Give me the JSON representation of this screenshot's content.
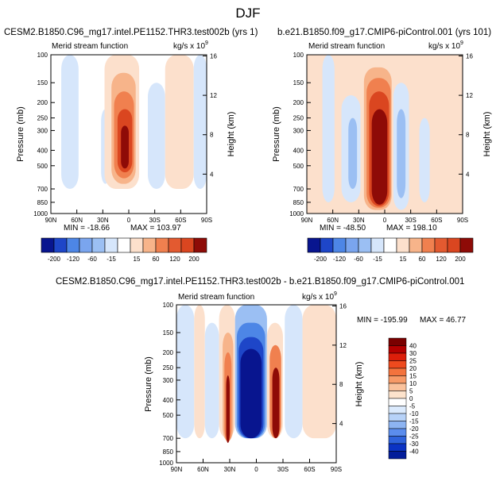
{
  "figure_title": "DJF",
  "chart_data": [
    {
      "type": "heatmap",
      "title": "CESM2.B1850.C96_mg17.intel.PE1152.THR3.test002b (yrs 1)",
      "subtitle_left": "Merid stream function",
      "units": "kg/s x 10",
      "units_exp": "9",
      "ylabel": "Pressure (mb)",
      "ylabel_right": "Height (km)",
      "xlabel": "",
      "x_ticks": [
        "90N",
        "60N",
        "30N",
        "0",
        "30S",
        "60S",
        "90S"
      ],
      "y_ticks": [
        "100",
        "150",
        "200",
        "250",
        "300",
        "400",
        "500",
        "700",
        "850",
        "1000"
      ],
      "y_ticks_right": [
        "16",
        "12",
        "8",
        "4"
      ],
      "min_label": "MIN = -18.66",
      "max_label": "MAX = 103.97",
      "min": -18.66,
      "max": 103.97,
      "colorbar_labels": [
        "-200",
        "-120",
        "-60",
        "-15",
        "15",
        "60",
        "120",
        "200"
      ],
      "cells": [
        {
          "lat_from": 78,
          "lat_to": 58,
          "p_top": 100,
          "p_bot": 700,
          "level": -1
        },
        {
          "lat_from": 32,
          "lat_to": 22,
          "p_top": 220,
          "p_bot": 650,
          "level": -1
        },
        {
          "lat_from": 28,
          "lat_to": -12,
          "p_top": 100,
          "p_bot": 700,
          "level": 1
        },
        {
          "lat_from": 20,
          "lat_to": -8,
          "p_top": 130,
          "p_bot": 650,
          "level": 2
        },
        {
          "lat_from": 17,
          "lat_to": -6,
          "p_top": 170,
          "p_bot": 600,
          "level": 3
        },
        {
          "lat_from": 13,
          "lat_to": -4,
          "p_top": 220,
          "p_bot": 550,
          "level": 4
        },
        {
          "lat_from": 9,
          "lat_to": 0,
          "p_top": 280,
          "p_bot": 520,
          "level": 5
        },
        {
          "lat_from": -22,
          "lat_to": -42,
          "p_top": 150,
          "p_bot": 700,
          "level": -1
        },
        {
          "lat_from": -42,
          "lat_to": -75,
          "p_top": 100,
          "p_bot": 700,
          "level": 1
        },
        {
          "lat_from": -75,
          "lat_to": -90,
          "p_top": 100,
          "p_bot": 700,
          "level": -1
        }
      ]
    },
    {
      "type": "heatmap",
      "title": "b.e21.B1850.f09_g17.CMIP6-piControl.001 (yrs 101)",
      "subtitle_left": "Merid stream function",
      "units": "kg/s x 10",
      "units_exp": "9",
      "ylabel": "Pressure (mb)",
      "ylabel_right": "Height (km)",
      "xlabel": "",
      "x_ticks": [
        "90N",
        "60N",
        "30N",
        "0",
        "30S",
        "60S",
        "90S"
      ],
      "y_ticks": [
        "100",
        "150",
        "200",
        "250",
        "300",
        "400",
        "500",
        "700",
        "850",
        "1000"
      ],
      "y_ticks_right": [
        "16",
        "12",
        "8",
        "4"
      ],
      "min_label": "MIN = -48.50",
      "max_label": "MAX = 198.10",
      "min": -48.5,
      "max": 198.1,
      "colorbar_labels": [
        "-200",
        "-120",
        "-60",
        "-15",
        "15",
        "60",
        "120",
        "200"
      ],
      "cells": [
        {
          "lat_from": 90,
          "lat_to": 78,
          "p_top": 100,
          "p_bot": 1000,
          "level": 1
        },
        {
          "lat_from": 72,
          "lat_to": 58,
          "p_top": 100,
          "p_bot": 850,
          "level": -1
        },
        {
          "lat_from": 50,
          "lat_to": 28,
          "p_top": 180,
          "p_bot": 850,
          "level": -1
        },
        {
          "lat_from": 42,
          "lat_to": 32,
          "p_top": 250,
          "p_bot": 700,
          "level": -2
        },
        {
          "lat_from": 28,
          "lat_to": -10,
          "p_top": 100,
          "p_bot": 1000,
          "level": 1
        },
        {
          "lat_from": 24,
          "lat_to": -8,
          "p_top": 120,
          "p_bot": 950,
          "level": 2
        },
        {
          "lat_from": 21,
          "lat_to": -7,
          "p_top": 140,
          "p_bot": 920,
          "level": 3
        },
        {
          "lat_from": 18,
          "lat_to": -5,
          "p_top": 170,
          "p_bot": 900,
          "level": 4
        },
        {
          "lat_from": 15,
          "lat_to": -3,
          "p_top": 220,
          "p_bot": 880,
          "level": 5
        },
        {
          "lat_from": -10,
          "lat_to": -28,
          "p_top": 150,
          "p_bot": 950,
          "level": -1
        },
        {
          "lat_from": -14,
          "lat_to": -24,
          "p_top": 220,
          "p_bot": 800,
          "level": -2
        },
        {
          "lat_from": -40,
          "lat_to": -52,
          "p_top": 250,
          "p_bot": 850,
          "level": -1
        },
        {
          "lat_from": -55,
          "lat_to": -85,
          "p_top": 100,
          "p_bot": 850,
          "level": 1
        }
      ]
    },
    {
      "type": "heatmap",
      "title": "CESM2.B1850.C96_mg17.intel.PE1152.THR3.test002b - b.e21.B1850.f09_g17.CMIP6-piControl.001",
      "subtitle_left": "Merid stream function",
      "units": "kg/s x 10",
      "units_exp": "9",
      "ylabel": "Pressure (mb)",
      "ylabel_right": "Height (km)",
      "xlabel": "",
      "x_ticks": [
        "90N",
        "60N",
        "30N",
        "0",
        "30S",
        "60S",
        "90S"
      ],
      "y_ticks": [
        "100",
        "150",
        "200",
        "250",
        "300",
        "400",
        "500",
        "700",
        "850",
        "1000"
      ],
      "y_ticks_right": [
        "16",
        "12",
        "8",
        "4"
      ],
      "min_label": "MIN = -195.99",
      "max_label": "MAX =  46.77",
      "min": -195.99,
      "max": 46.77,
      "colorbar_labels": [
        "40",
        "30",
        "25",
        "20",
        "15",
        "10",
        "5",
        "0",
        "-5",
        "-10",
        "-15",
        "-20",
        "-25",
        "-30",
        "-40"
      ],
      "cells": [
        {
          "lat_from": 90,
          "lat_to": 70,
          "p_top": 100,
          "p_bot": 700,
          "level": -1
        },
        {
          "lat_from": 70,
          "lat_to": 58,
          "p_top": 100,
          "p_bot": 700,
          "level": 1
        },
        {
          "lat_from": 58,
          "lat_to": 42,
          "p_top": 130,
          "p_bot": 700,
          "level": -1
        },
        {
          "lat_from": 42,
          "lat_to": 24,
          "p_top": 100,
          "p_bot": 700,
          "level": 1
        },
        {
          "lat_from": 38,
          "lat_to": 26,
          "p_top": 150,
          "p_bot": 730,
          "level": 2
        },
        {
          "lat_from": 36,
          "lat_to": 28,
          "p_top": 200,
          "p_bot": 740,
          "level": 3
        },
        {
          "lat_from": 34,
          "lat_to": 30,
          "p_top": 280,
          "p_bot": 750,
          "level": 5
        },
        {
          "lat_from": 24,
          "lat_to": -12,
          "p_top": 100,
          "p_bot": 700,
          "level": -2
        },
        {
          "lat_from": 22,
          "lat_to": -10,
          "p_top": 130,
          "p_bot": 700,
          "level": -3
        },
        {
          "lat_from": 20,
          "lat_to": -8,
          "p_top": 160,
          "p_bot": 700,
          "level": -4
        },
        {
          "lat_from": 18,
          "lat_to": -6,
          "p_top": 190,
          "p_bot": 700,
          "level": -5
        },
        {
          "lat_from": -12,
          "lat_to": -30,
          "p_top": 130,
          "p_bot": 700,
          "level": 1
        },
        {
          "lat_from": -15,
          "lat_to": -28,
          "p_top": 180,
          "p_bot": 700,
          "level": 3
        },
        {
          "lat_from": -18,
          "lat_to": -26,
          "p_top": 250,
          "p_bot": 700,
          "level": 5
        },
        {
          "lat_from": -32,
          "lat_to": -52,
          "p_top": 100,
          "p_bot": 700,
          "level": -1
        },
        {
          "lat_from": -52,
          "lat_to": -90,
          "p_top": 100,
          "p_bot": 700,
          "level": 1
        }
      ]
    }
  ],
  "colors": {
    "neg": [
      "#d6e6fb",
      "#9bbff3",
      "#4d86e6",
      "#1e46c8",
      "#08158f"
    ],
    "pos": [
      "#fce0cc",
      "#f7b48a",
      "#f0804f",
      "#da4620",
      "#8e0b07"
    ],
    "diff_scale": [
      "#7a0000",
      "#b40000",
      "#dc1e0a",
      "#ee4a1e",
      "#f3733d",
      "#f79a67",
      "#fac29c",
      "#fde3cc",
      "#ffffff",
      "#dbeafd",
      "#b7d2f8",
      "#8db4f2",
      "#5b8ded",
      "#2f63dc",
      "#0b33c4",
      "#031d9a"
    ],
    "main_scale": [
      "#08158f",
      "#1e46c8",
      "#4d86e6",
      "#7aa5ee",
      "#9bbff3",
      "#d6e6fb",
      "#ffffff",
      "#fce0cc",
      "#f7b48a",
      "#f0804f",
      "#e35a30",
      "#da4620",
      "#8e0b07"
    ]
  }
}
